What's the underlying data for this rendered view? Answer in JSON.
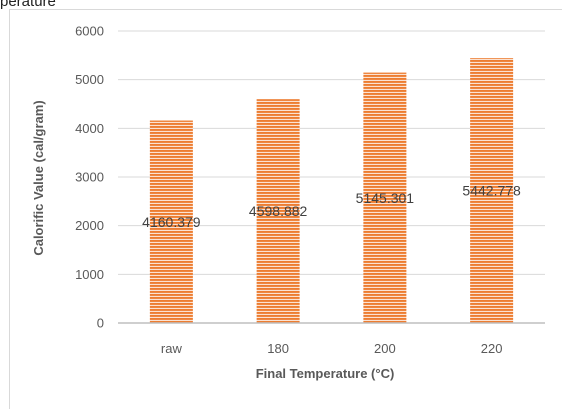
{
  "header_fragment": "perature",
  "chart_data": {
    "type": "bar",
    "title": "",
    "xlabel": "Final Temperature (°C)",
    "ylabel": "Calorific Value (cal/gram)",
    "categories": [
      "raw",
      "180",
      "200",
      "220"
    ],
    "values": [
      4160.379,
      4598.882,
      5145.301,
      5442.778
    ],
    "data_labels": [
      "4160.379",
      "4598.882",
      "5145.301",
      "5442.778"
    ],
    "ylim": [
      0,
      6000
    ],
    "yticks": [
      0,
      1000,
      2000,
      3000,
      4000,
      5000,
      6000
    ],
    "grid": true,
    "legend": "none",
    "bar_color": "#ed7d31",
    "bar_pattern": "horizontal-stripes"
  }
}
